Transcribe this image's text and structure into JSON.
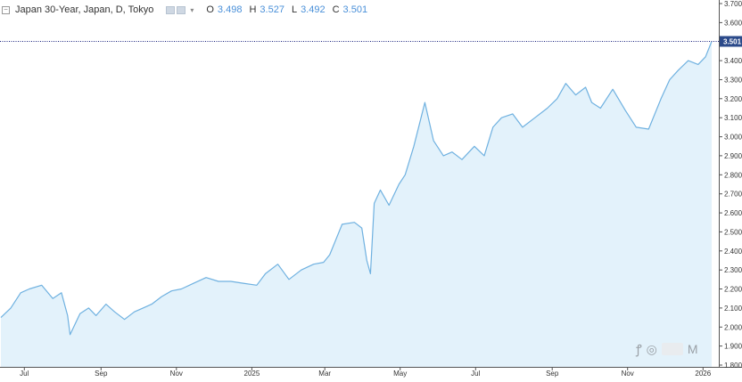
{
  "legend": {
    "symbol": "Japan 30-Year, Japan, D, Tokyo",
    "open_key": "O",
    "open": "3.498",
    "high_key": "H",
    "high": "3.527",
    "low_key": "L",
    "low": "3.492",
    "close_key": "C",
    "close": "3.501"
  },
  "watermark": {
    "text": "M"
  },
  "colors": {
    "line": "#6fb1e0",
    "area": "#e3f2fb",
    "last_price_line": "#1a237e",
    "last_label_bg": "#2b4a8a"
  },
  "chart_data": {
    "type": "area",
    "title": "",
    "xlabel": "",
    "ylabel": "",
    "y_axis_position": "right",
    "ylim": [
      1.8,
      3.7
    ],
    "y_ticks": [
      "1.800",
      "1.900",
      "2.000",
      "2.100",
      "2.200",
      "2.300",
      "2.400",
      "2.500",
      "2.600",
      "2.700",
      "2.800",
      "2.900",
      "3.000",
      "3.100",
      "3.200",
      "3.300",
      "3.400",
      "3.501",
      "3.600",
      "3.700"
    ],
    "x_tick_labels": [
      "Jul",
      "Sep",
      "Nov",
      "2025",
      "Mar",
      "May",
      "Jul",
      "Sep",
      "Nov",
      "2026"
    ],
    "x_tick_positions": [
      "2024-07",
      "2024-09",
      "2024-11",
      "2025-01",
      "2025-03",
      "2025-05",
      "2025-07",
      "2025-09",
      "2025-11",
      "2026-01"
    ],
    "x_start": "2024-06-12",
    "x_end": "2026-01-08",
    "last_price": 3.501,
    "series": [
      {
        "x": [
          "2024-06-12",
          "2024-06-20",
          "2024-06-28",
          "2024-07-05",
          "2024-07-15",
          "2024-07-24",
          "2024-07-31",
          "2024-08-05",
          "2024-08-07",
          "2024-08-15",
          "2024-08-22",
          "2024-08-28",
          "2024-09-05",
          "2024-09-12",
          "2024-09-20",
          "2024-09-28",
          "2024-10-05",
          "2024-10-12",
          "2024-10-20",
          "2024-10-28",
          "2024-11-05",
          "2024-11-15",
          "2024-11-25",
          "2024-12-05",
          "2024-12-15",
          "2024-12-25",
          "2025-01-05",
          "2025-01-12",
          "2025-01-22",
          "2025-01-31",
          "2025-02-10",
          "2025-02-20",
          "2025-02-28",
          "2025-03-05",
          "2025-03-15",
          "2025-03-25",
          "2025-03-31",
          "2025-04-04",
          "2025-04-07",
          "2025-04-10",
          "2025-04-15",
          "2025-04-22",
          "2025-04-30",
          "2025-05-05",
          "2025-05-12",
          "2025-05-21",
          "2025-05-28",
          "2025-06-05",
          "2025-06-12",
          "2025-06-20",
          "2025-06-30",
          "2025-07-08",
          "2025-07-15",
          "2025-07-22",
          "2025-07-31",
          "2025-08-08",
          "2025-08-18",
          "2025-08-28",
          "2025-09-05",
          "2025-09-12",
          "2025-09-20",
          "2025-09-28",
          "2025-10-03",
          "2025-10-10",
          "2025-10-20",
          "2025-10-30",
          "2025-11-08",
          "2025-11-18",
          "2025-11-28",
          "2025-12-05",
          "2025-12-12",
          "2025-12-20",
          "2025-12-28",
          "2026-01-03",
          "2026-01-08"
        ],
        "values": [
          2.05,
          2.1,
          2.18,
          2.2,
          2.22,
          2.15,
          2.18,
          2.06,
          1.96,
          2.07,
          2.1,
          2.06,
          2.12,
          2.08,
          2.04,
          2.08,
          2.1,
          2.12,
          2.16,
          2.19,
          2.2,
          2.23,
          2.26,
          2.24,
          2.24,
          2.23,
          2.22,
          2.28,
          2.33,
          2.25,
          2.3,
          2.33,
          2.34,
          2.38,
          2.54,
          2.55,
          2.52,
          2.35,
          2.28,
          2.65,
          2.72,
          2.64,
          2.75,
          2.8,
          2.95,
          3.18,
          2.98,
          2.9,
          2.92,
          2.88,
          2.95,
          2.9,
          3.05,
          3.1,
          3.12,
          3.05,
          3.1,
          3.15,
          3.2,
          3.28,
          3.22,
          3.26,
          3.18,
          3.15,
          3.25,
          3.14,
          3.05,
          3.04,
          3.2,
          3.3,
          3.35,
          3.4,
          3.38,
          3.42,
          3.501
        ]
      }
    ]
  }
}
